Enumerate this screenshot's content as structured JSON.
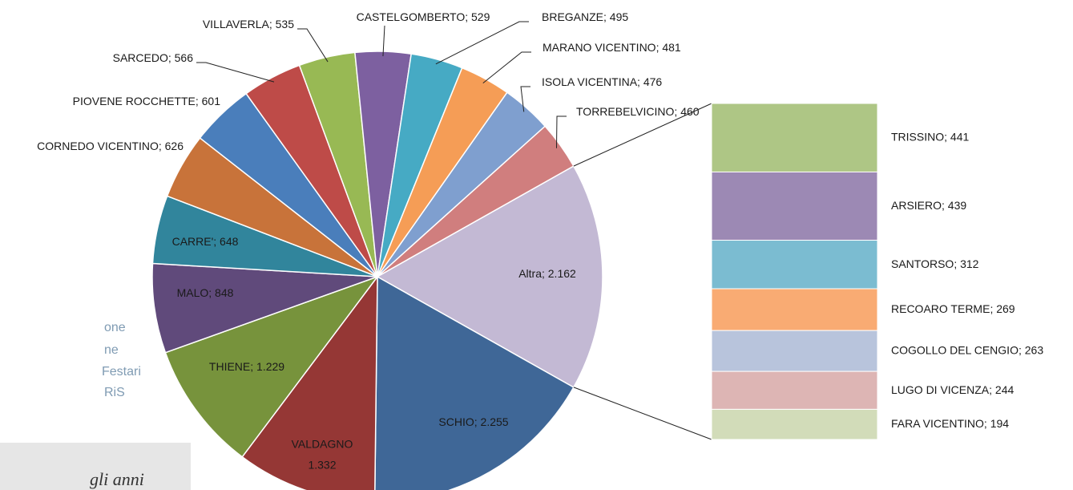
{
  "chart_data": {
    "type": "pie-of-bar",
    "categories": [
      "SCHIO",
      "VALDAGNO",
      "THIENE",
      "MALO",
      "CARRE'",
      "CORNEDO VICENTINO",
      "PIOVENE ROCCHETTE",
      "SARCEDO",
      "VILLAVERLA",
      "CASTELGOMBERTO",
      "BREGANZE",
      "MARANO VICENTINO",
      "ISOLA VICENTINA",
      "TORREBELVICINO",
      "Altra"
    ],
    "values": [
      2255,
      1332,
      1229,
      848,
      648,
      626,
      601,
      566,
      535,
      529,
      495,
      481,
      476,
      460,
      2162
    ],
    "value_labels": [
      "2.255",
      "1.332",
      "1.229",
      "848",
      "648",
      "626",
      "601",
      "566",
      "535",
      "529",
      "495",
      "481",
      "476",
      "460",
      "2.162"
    ],
    "colors": [
      "#3f6797",
      "#953735",
      "#77933c",
      "#604a7b",
      "#31859c",
      "#c8733a",
      "#4a7ebb",
      "#be4b48",
      "#98b954",
      "#7d60a0",
      "#46aac4",
      "#f59d56",
      "#7f9fcf",
      "#d07e7e",
      "#c3b9d4"
    ],
    "secondary": {
      "categories": [
        "TRISSINO",
        "ARSIERO",
        "SANTORSO",
        "RECOARO TERME",
        "COGOLLO DEL CENGIO",
        "LUGO DI VICENZA",
        "FARA VICENTINO"
      ],
      "values": [
        441,
        439,
        312,
        269,
        263,
        244,
        194
      ],
      "colors": [
        "#aec685",
        "#9c89b4",
        "#7bbcd1",
        "#f9ab73",
        "#b8c4dc",
        "#ddb5b4",
        "#d2dcb9"
      ]
    }
  },
  "background_text": [
    "one",
    "ne",
    "Festari",
    "RiS",
    "gli anni"
  ]
}
